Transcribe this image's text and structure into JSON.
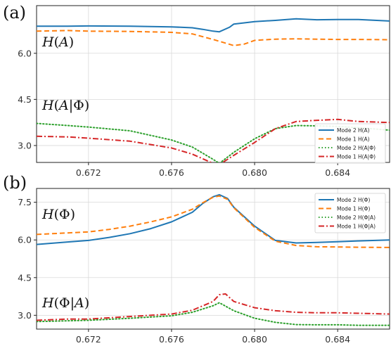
{
  "chart_data": [
    {
      "panel_label": "(a)",
      "type": "line",
      "xlim": [
        0.6695,
        0.6865
      ],
      "ylim": [
        2.45,
        7.55
      ],
      "xticks": [
        "0.672",
        "0.676",
        "0.680",
        "0.684"
      ],
      "xtick_values": [
        0.672,
        0.676,
        0.68,
        0.684
      ],
      "yticks": [
        "3.0",
        "4.5",
        "6.0"
      ],
      "ytick_values": [
        3.0,
        4.5,
        6.0
      ],
      "grid": true,
      "legend_position": "lower-right",
      "annotations": [
        {
          "text": "H(A)",
          "x": 0.6698,
          "y": 6.05
        },
        {
          "text": "H(A|Φ)",
          "x": 0.6698,
          "y": 3.98
        }
      ],
      "series": [
        {
          "name": "Mode 2 H(A)",
          "color": "#1f77b4",
          "dash": "solid",
          "x": [
            0.6695,
            0.671,
            0.672,
            0.674,
            0.676,
            0.677,
            0.6775,
            0.678,
            0.6783,
            0.6788,
            0.679,
            0.68,
            0.681,
            0.682,
            0.683,
            0.684,
            0.685,
            0.6865
          ],
          "y": [
            6.88,
            6.88,
            6.89,
            6.88,
            6.86,
            6.83,
            6.78,
            6.72,
            6.7,
            6.85,
            6.95,
            7.03,
            7.07,
            7.12,
            7.09,
            7.1,
            7.1,
            7.05
          ]
        },
        {
          "name": "Mode 1 H(A)",
          "color": "#ff7f0e",
          "dash": "dashed",
          "x": [
            0.6695,
            0.671,
            0.672,
            0.674,
            0.676,
            0.677,
            0.678,
            0.679,
            0.6795,
            0.68,
            0.681,
            0.682,
            0.683,
            0.684,
            0.685,
            0.6865
          ],
          "y": [
            6.72,
            6.74,
            6.72,
            6.71,
            6.68,
            6.63,
            6.45,
            6.25,
            6.3,
            6.42,
            6.46,
            6.47,
            6.46,
            6.45,
            6.45,
            6.44
          ]
        },
        {
          "name": "Mode 2 H(A|Φ)",
          "color": "#2ca02c",
          "dash": "dotted",
          "x": [
            0.6695,
            0.671,
            0.672,
            0.674,
            0.676,
            0.677,
            0.678,
            0.6783,
            0.679,
            0.68,
            0.681,
            0.682,
            0.683,
            0.684,
            0.685,
            0.6865
          ],
          "y": [
            3.72,
            3.65,
            3.6,
            3.48,
            3.18,
            2.95,
            2.55,
            2.42,
            2.78,
            3.22,
            3.55,
            3.65,
            3.64,
            3.62,
            3.58,
            3.5
          ]
        },
        {
          "name": "Mode 1 H(A|Φ)",
          "color": "#d62728",
          "dash": "dashdot",
          "x": [
            0.6695,
            0.671,
            0.672,
            0.674,
            0.676,
            0.677,
            0.678,
            0.6783,
            0.679,
            0.68,
            0.681,
            0.682,
            0.683,
            0.684,
            0.685,
            0.6865
          ],
          "y": [
            3.3,
            3.28,
            3.24,
            3.14,
            2.92,
            2.72,
            2.42,
            2.38,
            2.68,
            3.1,
            3.55,
            3.78,
            3.82,
            3.85,
            3.78,
            3.75
          ]
        }
      ]
    },
    {
      "panel_label": "(b)",
      "type": "line",
      "xlim": [
        0.6695,
        0.6865
      ],
      "ylim": [
        2.45,
        8.05
      ],
      "xticks": [
        "0.672",
        "0.676",
        "0.680",
        "0.684"
      ],
      "xtick_values": [
        0.672,
        0.676,
        0.68,
        0.684
      ],
      "yticks": [
        "3.0",
        "4.5",
        "6.0",
        "7.5"
      ],
      "ytick_values": [
        3.0,
        4.5,
        6.0,
        7.5
      ],
      "grid": true,
      "legend_position": "top-right",
      "annotations": [
        {
          "text": "H(Φ)",
          "x": 0.6698,
          "y": 6.6
        },
        {
          "text": "H(Φ|A)",
          "x": 0.6698,
          "y": 3.38
        }
      ],
      "series": [
        {
          "name": "Mode 2 H(Φ)",
          "color": "#1f77b4",
          "dash": "solid",
          "x": [
            0.6695,
            0.671,
            0.672,
            0.673,
            0.674,
            0.675,
            0.676,
            0.677,
            0.6775,
            0.678,
            0.6783,
            0.6787,
            0.679,
            0.68,
            0.681,
            0.682,
            0.683,
            0.684,
            0.685,
            0.6865
          ],
          "y": [
            5.82,
            5.92,
            5.98,
            6.1,
            6.25,
            6.45,
            6.72,
            7.1,
            7.45,
            7.72,
            7.8,
            7.65,
            7.3,
            6.55,
            5.98,
            5.88,
            5.9,
            5.93,
            5.96,
            6.0
          ]
        },
        {
          "name": "Mode 1 H(Φ)",
          "color": "#ff7f0e",
          "dash": "dashed",
          "x": [
            0.6695,
            0.671,
            0.672,
            0.673,
            0.674,
            0.675,
            0.676,
            0.677,
            0.6775,
            0.678,
            0.6783,
            0.6787,
            0.679,
            0.68,
            0.681,
            0.682,
            0.683,
            0.684,
            0.685,
            0.6865
          ],
          "y": [
            6.22,
            6.28,
            6.32,
            6.42,
            6.55,
            6.72,
            6.92,
            7.22,
            7.48,
            7.7,
            7.75,
            7.62,
            7.28,
            6.5,
            5.95,
            5.78,
            5.73,
            5.72,
            5.71,
            5.7
          ]
        },
        {
          "name": "Mode 2 H(Φ|A)",
          "color": "#2ca02c",
          "dash": "dotted",
          "x": [
            0.6695,
            0.671,
            0.672,
            0.674,
            0.676,
            0.677,
            0.678,
            0.6783,
            0.679,
            0.68,
            0.681,
            0.682,
            0.683,
            0.684,
            0.685,
            0.6865
          ],
          "y": [
            2.75,
            2.78,
            2.8,
            2.88,
            2.98,
            3.12,
            3.38,
            3.5,
            3.18,
            2.88,
            2.72,
            2.63,
            2.62,
            2.62,
            2.6,
            2.6
          ]
        },
        {
          "name": "Mode 1 H(Φ|A)",
          "color": "#d62728",
          "dash": "dashdot",
          "x": [
            0.6695,
            0.671,
            0.672,
            0.674,
            0.676,
            0.677,
            0.678,
            0.6783,
            0.6786,
            0.679,
            0.68,
            0.681,
            0.682,
            0.683,
            0.684,
            0.685,
            0.6865
          ],
          "y": [
            2.8,
            2.85,
            2.85,
            2.95,
            3.05,
            3.2,
            3.55,
            3.82,
            3.85,
            3.55,
            3.3,
            3.18,
            3.12,
            3.1,
            3.1,
            3.08,
            3.05
          ]
        }
      ]
    }
  ]
}
